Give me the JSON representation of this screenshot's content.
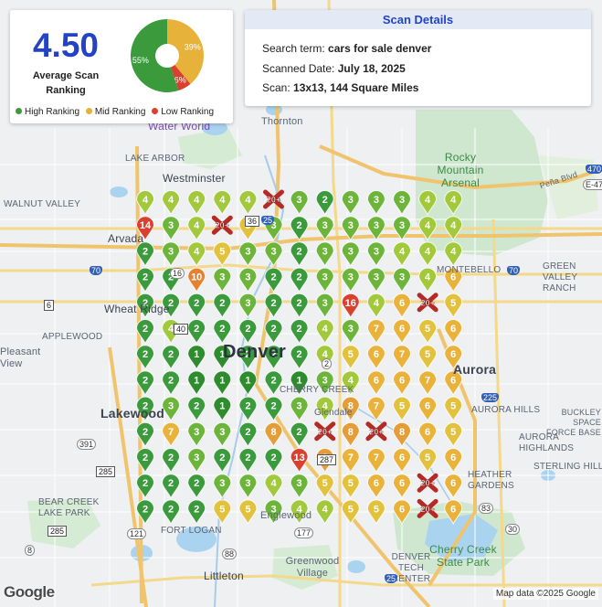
{
  "summary": {
    "average_ranking": "4.50",
    "average_label": "Average Scan Ranking",
    "pie": {
      "type": "pie",
      "slices": [
        {
          "name": "High Ranking",
          "percent": 55,
          "label": "55%",
          "color": "#3a9a3c"
        },
        {
          "name": "Mid Ranking",
          "percent": 39,
          "label": "39%",
          "color": "#e7b23a"
        },
        {
          "name": "Low Ranking",
          "percent": 6,
          "label": "6%",
          "color": "#d9402f"
        }
      ]
    },
    "legend": [
      {
        "label": "High Ranking",
        "color": "#3a9a3c"
      },
      {
        "label": "Mid Ranking",
        "color": "#e7b23a"
      },
      {
        "label": "Low Ranking",
        "color": "#d9402f"
      }
    ]
  },
  "details": {
    "title": "Scan Details",
    "search_term_label": "Search term:",
    "search_term": "cars for sale denver",
    "date_label": "Scanned Date:",
    "date": "July 18, 2025",
    "scan_label": "Scan:",
    "scan": "13x13, 144 Square Miles"
  },
  "map": {
    "places": [
      {
        "id": "thornton",
        "text": "Thornton",
        "kind": "place"
      },
      {
        "id": "water-world",
        "text": "Water World",
        "kind": "poi"
      },
      {
        "id": "lake-arbor",
        "text": "LAKE ARBOR",
        "kind": "place"
      },
      {
        "id": "westminster",
        "text": "Westminster",
        "kind": "big"
      },
      {
        "id": "rocky-mountain-arsenal",
        "text": "Rocky Mountain Arsenal",
        "kind": "park"
      },
      {
        "id": "walnut-valley",
        "text": "WALNUT VALLEY",
        "kind": "place"
      },
      {
        "id": "arvada",
        "text": "Arvada",
        "kind": "big"
      },
      {
        "id": "montebello",
        "text": "MONTEBELLO",
        "kind": "place"
      },
      {
        "id": "green-valley-ranch",
        "text": "GREEN VALLEY RANCH",
        "kind": "place"
      },
      {
        "id": "wheat-ridge",
        "text": "Wheat Ridge",
        "kind": "big"
      },
      {
        "id": "applewood",
        "text": "APPLEWOOD",
        "kind": "place"
      },
      {
        "id": "pleasant-view",
        "text": "Pleasant View",
        "kind": "place"
      },
      {
        "id": "denver",
        "text": "Denver",
        "kind": "big"
      },
      {
        "id": "aurora",
        "text": "Aurora",
        "kind": "big"
      },
      {
        "id": "cherry-creek",
        "text": "CHERRY CREEK",
        "kind": "place"
      },
      {
        "id": "lakewood",
        "text": "Lakewood",
        "kind": "big"
      },
      {
        "id": "aurora-hills",
        "text": "AURORA HILLS",
        "kind": "place"
      },
      {
        "id": "buckley",
        "text": "BUCKLEY SPACE FORCE BASE",
        "kind": "place"
      },
      {
        "id": "aurora-highlands",
        "text": "AURORA HIGHLANDS",
        "kind": "place"
      },
      {
        "id": "sterling-hills",
        "text": "STERLING HILLS",
        "kind": "place"
      },
      {
        "id": "heather-gardens",
        "text": "HEATHER GARDENS",
        "kind": "place"
      },
      {
        "id": "bear-creek",
        "text": "BEAR CREEK LAKE PARK",
        "kind": "place"
      },
      {
        "id": "fort-logan",
        "text": "FORT LOGAN",
        "kind": "place"
      },
      {
        "id": "englewood",
        "text": "Englewood",
        "kind": "place"
      },
      {
        "id": "littleton",
        "text": "Littleton",
        "kind": "big"
      },
      {
        "id": "greenwood-village",
        "text": "Greenwood Village",
        "kind": "place"
      },
      {
        "id": "denver-tech-center",
        "text": "DENVER TECH CENTER",
        "kind": "place"
      },
      {
        "id": "cherry-creek-state-park",
        "text": "Cherry Creek State Park",
        "kind": "park"
      },
      {
        "id": "glendale",
        "text": "Glendale",
        "kind": "place"
      },
      {
        "id": "pena-blvd",
        "text": "Peña Blvd",
        "kind": "place"
      }
    ],
    "highways": [
      {
        "text": "70",
        "kind": "i"
      },
      {
        "text": "70",
        "kind": "i"
      },
      {
        "text": "25",
        "kind": "i"
      },
      {
        "text": "25",
        "kind": "i"
      },
      {
        "text": "225",
        "kind": "i"
      },
      {
        "text": "470",
        "kind": "i"
      },
      {
        "text": "36",
        "kind": "us"
      },
      {
        "text": "6",
        "kind": "us"
      },
      {
        "text": "40",
        "kind": "us"
      },
      {
        "text": "287",
        "kind": "us"
      },
      {
        "text": "285",
        "kind": "us"
      },
      {
        "text": "285",
        "kind": "us"
      },
      {
        "text": "121",
        "kind": "state"
      },
      {
        "text": "391",
        "kind": "state"
      },
      {
        "text": "8",
        "kind": "state"
      },
      {
        "text": "177",
        "kind": "state"
      },
      {
        "text": "88",
        "kind": "state"
      },
      {
        "text": "30",
        "kind": "state"
      },
      {
        "text": "83",
        "kind": "state"
      },
      {
        "text": "2",
        "kind": "state"
      },
      {
        "text": "E-470",
        "kind": "state"
      },
      {
        "text": "16",
        "kind": "state"
      }
    ],
    "grid_rows": 13,
    "grid_cols": 13,
    "grid_ranks": [
      [
        "4",
        "4",
        "4",
        "4",
        "4",
        "20+",
        "3",
        "2",
        "3",
        "3",
        "3",
        "4",
        "4"
      ],
      [
        "14",
        "3",
        "4",
        "20+",
        "5",
        "3",
        "2",
        "3",
        "3",
        "3",
        "3",
        "4",
        "4"
      ],
      [
        "2",
        "3",
        "4",
        "5",
        "3",
        "3",
        "2",
        "3",
        "3",
        "3",
        "4",
        "4",
        "4"
      ],
      [
        "2",
        "2",
        "10",
        "3",
        "3",
        "2",
        "2",
        "3",
        "3",
        "3",
        "3",
        "4",
        "6"
      ],
      [
        "2",
        "2",
        "2",
        "2",
        "3",
        "2",
        "2",
        "3",
        "16",
        "4",
        "6",
        "20+",
        "5"
      ],
      [
        "2",
        "4",
        "2",
        "2",
        "2",
        "2",
        "2",
        "4",
        "3",
        "7",
        "6",
        "5",
        "6"
      ],
      [
        "2",
        "2",
        "1",
        "1",
        "2",
        "2",
        "2",
        "4",
        "5",
        "6",
        "7",
        "5",
        "6"
      ],
      [
        "2",
        "2",
        "1",
        "1",
        "1",
        "2",
        "1",
        "3",
        "4",
        "6",
        "6",
        "7",
        "6"
      ],
      [
        "2",
        "3",
        "2",
        "1",
        "2",
        "2",
        "3",
        "4",
        "8",
        "7",
        "5",
        "6",
        "5"
      ],
      [
        "2",
        "7",
        "3",
        "3",
        "2",
        "8",
        "2",
        "20+",
        "8",
        "20+",
        "8",
        "6",
        "5"
      ],
      [
        "2",
        "2",
        "3",
        "2",
        "2",
        "2",
        "13",
        "8",
        "7",
        "7",
        "6",
        "5",
        "6"
      ],
      [
        "2",
        "2",
        "2",
        "3",
        "3",
        "4",
        "3",
        "5",
        "5",
        "6",
        "6",
        "20+",
        "6"
      ],
      [
        "2",
        "2",
        "2",
        "5",
        "5",
        "3",
        "4",
        "4",
        "5",
        "5",
        "6",
        "20+",
        "6"
      ]
    ],
    "google_logo": "Google",
    "attribution": "Map data ©2025 Google"
  }
}
